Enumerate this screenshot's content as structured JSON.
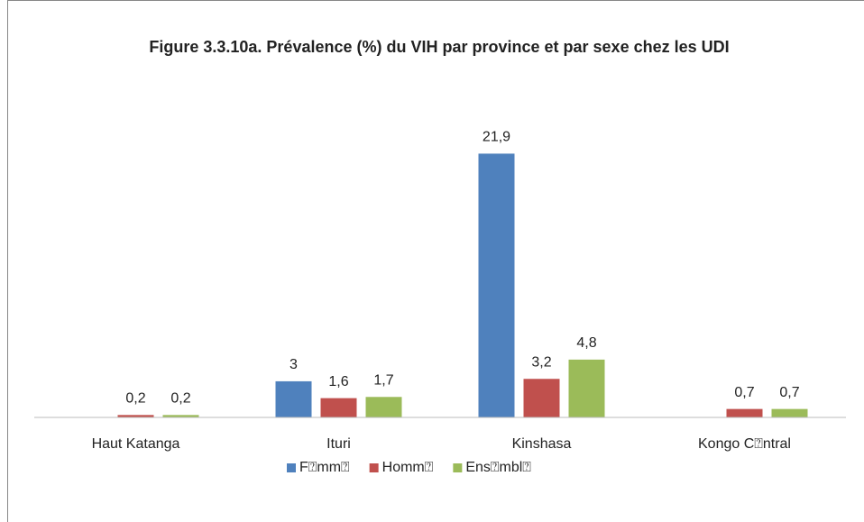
{
  "chart_data": {
    "type": "bar",
    "title": "Figure 3.3.10a. Prévalence (%) du VIH par province et par sexe chez les UDI",
    "categories": [
      "Haut Katanga",
      "Ituri",
      "Kinshasa",
      "Kongo C⍰ntral"
    ],
    "series": [
      {
        "name": "F⍰mm⍰",
        "color": "#4f81bd",
        "values": [
          null,
          3,
          21.9,
          null
        ],
        "value_labels": [
          null,
          "3",
          "21,9",
          null
        ]
      },
      {
        "name": "Homm⍰",
        "color": "#c0504d",
        "values": [
          0.2,
          1.6,
          3.2,
          0.7
        ],
        "value_labels": [
          "0,2",
          "1,6",
          "3,2",
          "0,7"
        ]
      },
      {
        "name": "Ens⍰mbl⍰",
        "color": "#9bbb59",
        "values": [
          0.2,
          1.7,
          4.8,
          0.7
        ],
        "value_labels": [
          "0,2",
          "1,7",
          "4,8",
          "0,7"
        ]
      }
    ],
    "ylim": [
      0,
      25
    ],
    "legend": "bottom"
  }
}
